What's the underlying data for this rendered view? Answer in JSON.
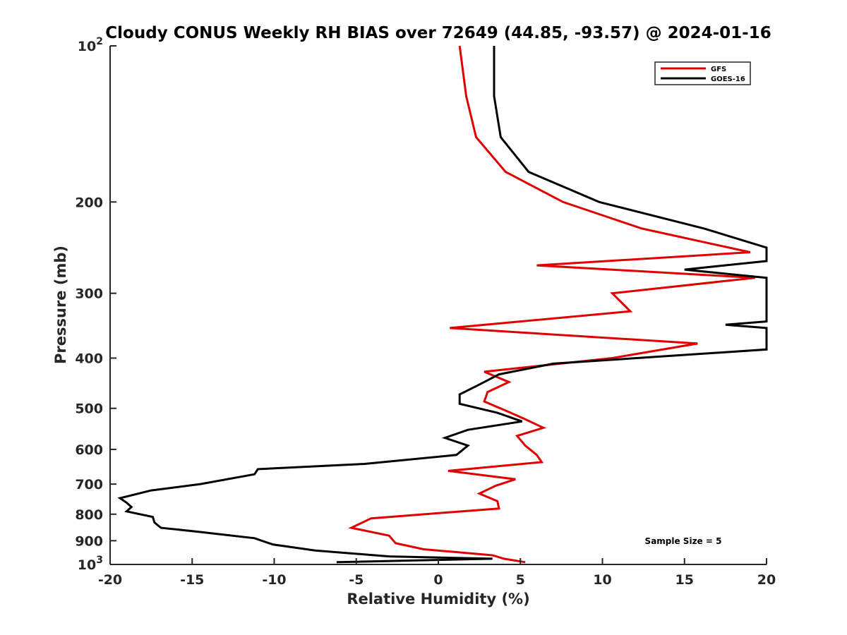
{
  "chart_data": {
    "type": "line",
    "title": "Cloudy CONUS Weekly RH BIAS over 72649 (44.85, -93.57) @ 2024-01-16",
    "xlabel": "Relative Humidity (%)",
    "ylabel": "Pressure (mb)",
    "xlim": [
      -20,
      20
    ],
    "ylim": [
      100,
      1000
    ],
    "y_scale": "log",
    "y_reversed": true,
    "grid": false,
    "legend_position": "top-right",
    "x_ticks": [
      -20,
      -15,
      -10,
      -5,
      0,
      5,
      10,
      15,
      20
    ],
    "x_tick_labels": [
      "-20",
      "-15",
      "-10",
      "-5",
      "0",
      "5",
      "10",
      "15",
      "20"
    ],
    "y_ticks": [
      100,
      200,
      300,
      400,
      500,
      600,
      700,
      800,
      900,
      1000
    ],
    "y_tick_labels": [
      {
        "base": "10",
        "exp": "2"
      },
      {
        "base": "200",
        "exp": ""
      },
      {
        "base": "300",
        "exp": ""
      },
      {
        "base": "400",
        "exp": ""
      },
      {
        "base": "500",
        "exp": ""
      },
      {
        "base": "600",
        "exp": ""
      },
      {
        "base": "700",
        "exp": ""
      },
      {
        "base": "800",
        "exp": ""
      },
      {
        "base": "900",
        "exp": ""
      },
      {
        "base": "10",
        "exp": "3"
      }
    ],
    "annotation": "Sample Size = 5",
    "series": [
      {
        "name": "GFS",
        "color": "#e00000",
        "points": [
          [
            1.3,
            100
          ],
          [
            1.7,
            125
          ],
          [
            2.3,
            150
          ],
          [
            4.1,
            175
          ],
          [
            7.6,
            200
          ],
          [
            12.4,
            225
          ],
          [
            19.0,
            250
          ],
          [
            6.0,
            265
          ],
          [
            19.3,
            280
          ],
          [
            10.6,
            300
          ],
          [
            11.7,
            325
          ],
          [
            0.7,
            350
          ],
          [
            15.8,
            375
          ],
          [
            10.6,
            400
          ],
          [
            2.8,
            425
          ],
          [
            4.3,
            445
          ],
          [
            3.0,
            465
          ],
          [
            2.8,
            485
          ],
          [
            4.1,
            505
          ],
          [
            5.3,
            525
          ],
          [
            6.4,
            545
          ],
          [
            4.8,
            565
          ],
          [
            5.3,
            590
          ],
          [
            6.0,
            615
          ],
          [
            6.3,
            635
          ],
          [
            0.6,
            660
          ],
          [
            4.7,
            685
          ],
          [
            3.5,
            705
          ],
          [
            2.5,
            730
          ],
          [
            3.6,
            755
          ],
          [
            3.7,
            780
          ],
          [
            -4.1,
            815
          ],
          [
            -5.3,
            850
          ],
          [
            -3.0,
            880
          ],
          [
            -2.6,
            910
          ],
          [
            -0.9,
            935
          ],
          [
            3.3,
            960
          ],
          [
            4.0,
            975
          ],
          [
            5.3,
            990
          ]
        ]
      },
      {
        "name": "GOES-16",
        "color": "#000000",
        "points": [
          [
            3.4,
            100
          ],
          [
            3.4,
            125
          ],
          [
            3.8,
            150
          ],
          [
            5.5,
            175
          ],
          [
            9.8,
            200
          ],
          [
            16.2,
            225
          ],
          [
            20.0,
            245
          ],
          [
            20.0,
            260
          ],
          [
            15.0,
            270
          ],
          [
            20.0,
            280
          ],
          [
            20.0,
            340
          ],
          [
            17.5,
            345
          ],
          [
            20.0,
            350
          ],
          [
            20.0,
            385
          ],
          [
            7.0,
            410
          ],
          [
            3.7,
            430
          ],
          [
            2.5,
            450
          ],
          [
            1.3,
            470
          ],
          [
            1.3,
            490
          ],
          [
            3.6,
            510
          ],
          [
            5.1,
            530
          ],
          [
            1.8,
            550
          ],
          [
            0.4,
            570
          ],
          [
            1.8,
            590
          ],
          [
            1.1,
            615
          ],
          [
            -4.5,
            640
          ],
          [
            -11.0,
            655
          ],
          [
            -11.2,
            670
          ],
          [
            -14.5,
            700
          ],
          [
            -17.5,
            720
          ],
          [
            -19.4,
            745
          ],
          [
            -19.0,
            760
          ],
          [
            -18.7,
            775
          ],
          [
            -19.0,
            790
          ],
          [
            -17.4,
            810
          ],
          [
            -17.3,
            830
          ],
          [
            -16.9,
            850
          ],
          [
            -14.6,
            865
          ],
          [
            -11.2,
            890
          ],
          [
            -10.1,
            915
          ],
          [
            -7.5,
            940
          ],
          [
            -3.0,
            965
          ],
          [
            3.3,
            975
          ],
          [
            -6.2,
            990
          ]
        ]
      }
    ]
  }
}
